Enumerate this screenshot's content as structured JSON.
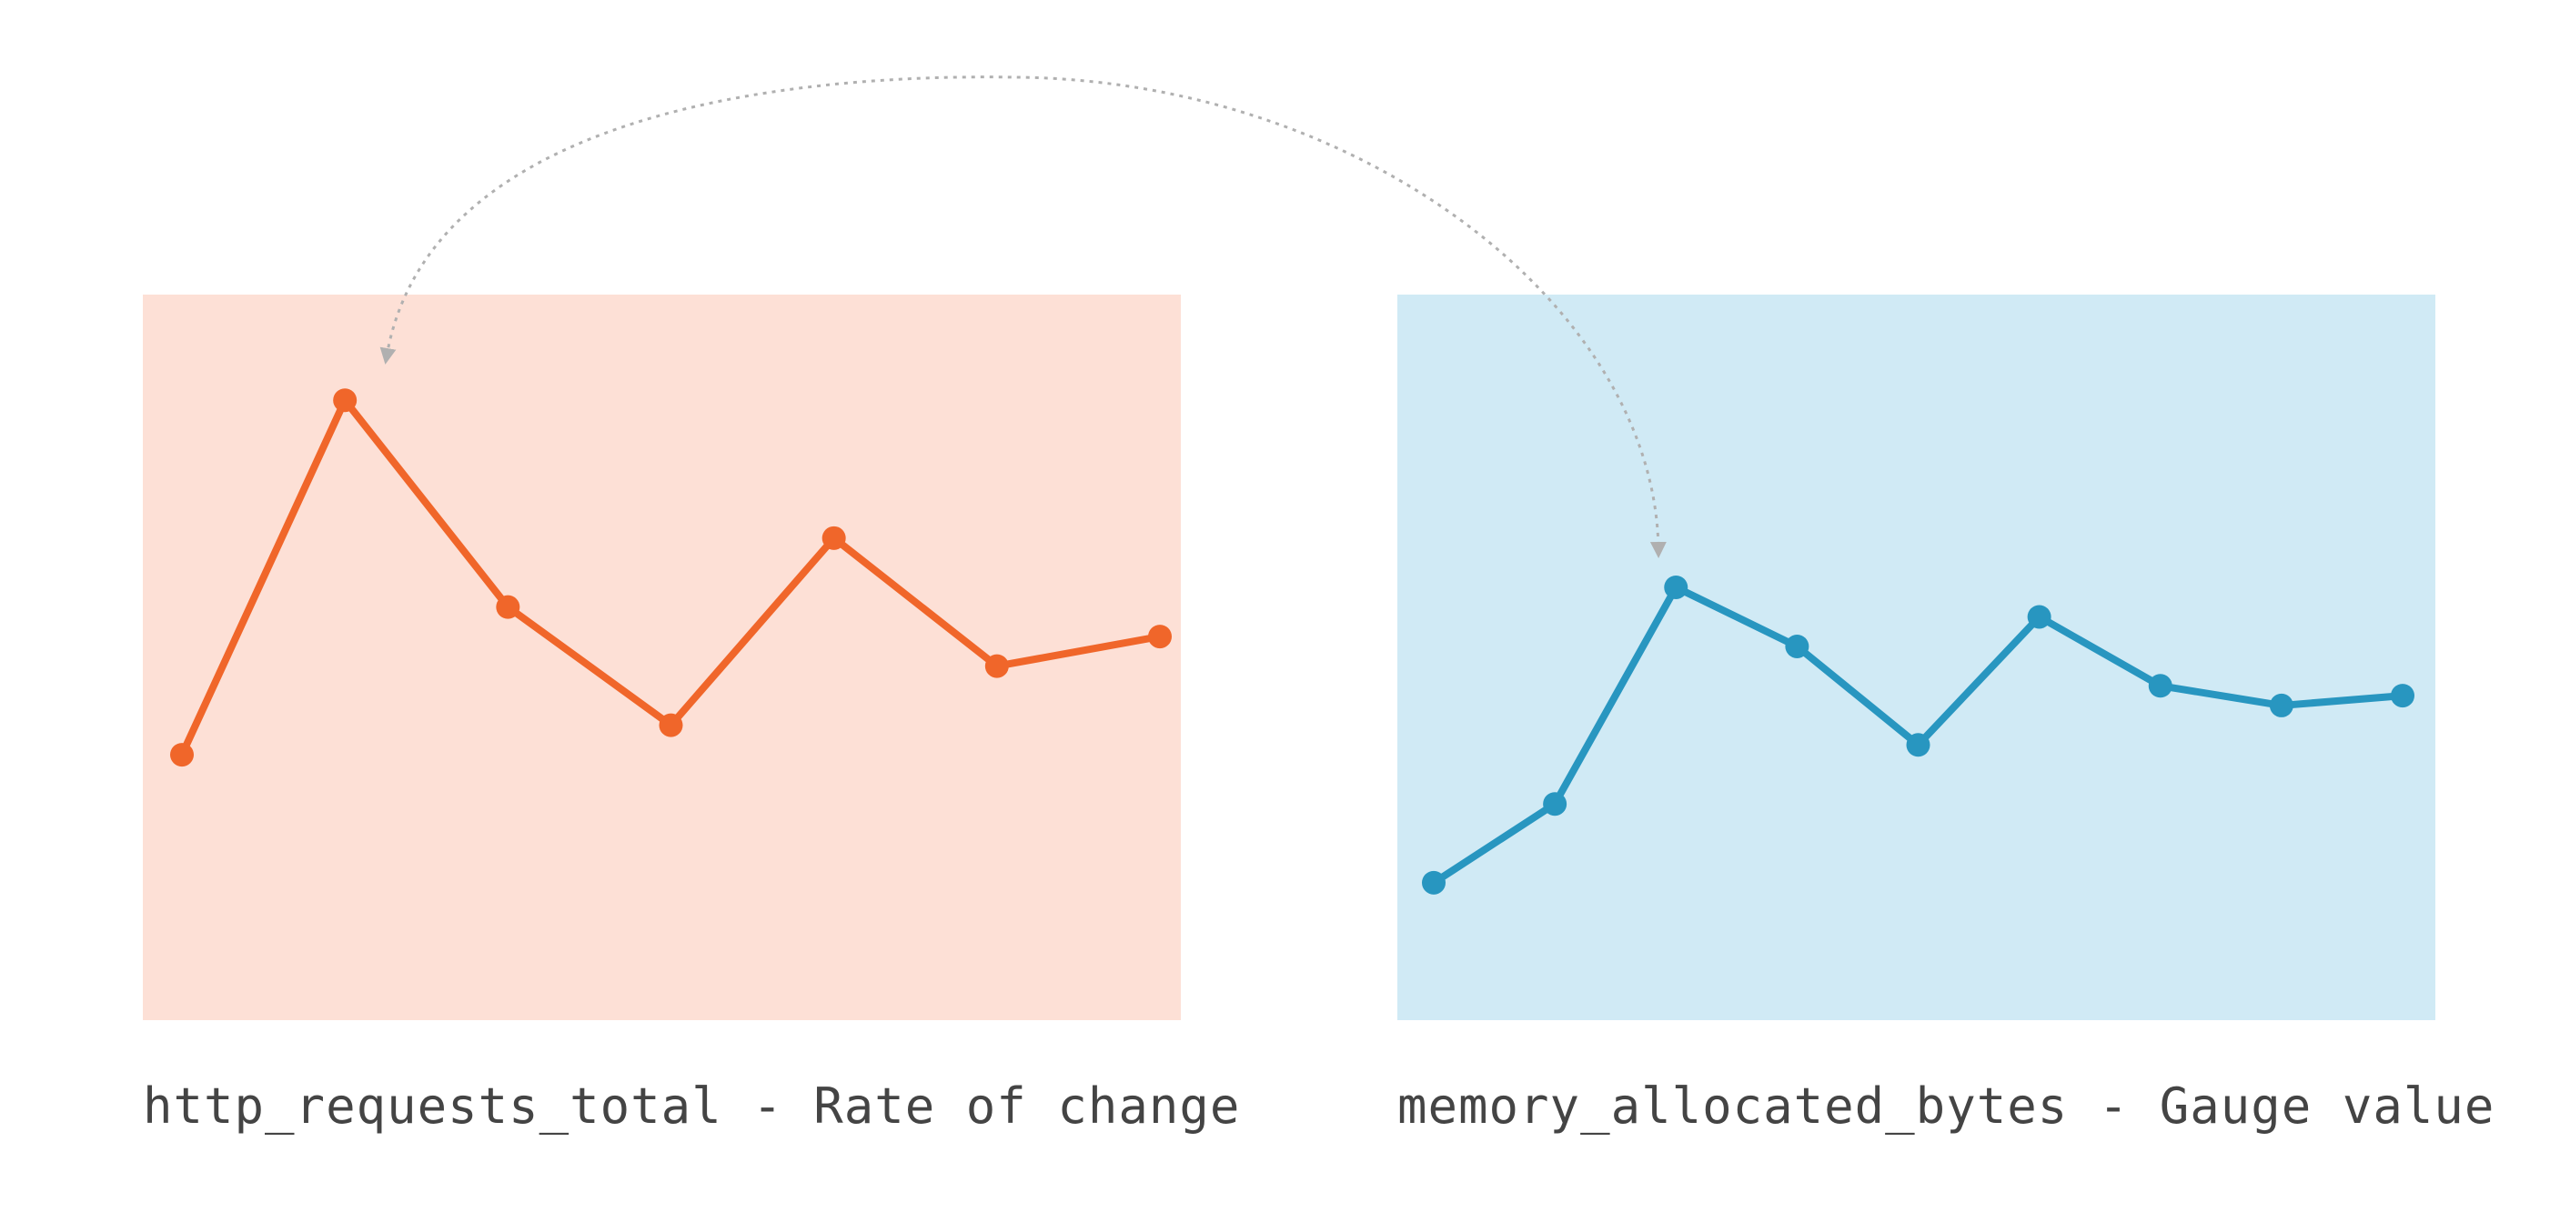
{
  "colors": {
    "left_panel_bg": "#fde0d6",
    "left_series": "#f0662a",
    "right_panel_bg": "#d0eaf5",
    "right_series": "#2896c0",
    "connector": "#b0b0b0"
  },
  "chart_data": [
    {
      "type": "line",
      "caption": "http_requests_total - Rate of change",
      "x": [
        1,
        2,
        3,
        4,
        5,
        6,
        7
      ],
      "values": [
        2.4,
        6.0,
        3.9,
        2.7,
        4.6,
        3.3,
        3.6
      ],
      "ylim": [
        0,
        7
      ],
      "grid": false,
      "legend": "none"
    },
    {
      "type": "line",
      "caption": "memory_allocated_bytes - Gauge value",
      "x": [
        1,
        2,
        3,
        4,
        5,
        6,
        7,
        8,
        9
      ],
      "values": [
        1.1,
        1.9,
        4.1,
        3.5,
        2.5,
        3.8,
        3.1,
        2.9,
        3.0
      ],
      "ylim": [
        0,
        7
      ],
      "grid": false,
      "legend": "none"
    }
  ]
}
